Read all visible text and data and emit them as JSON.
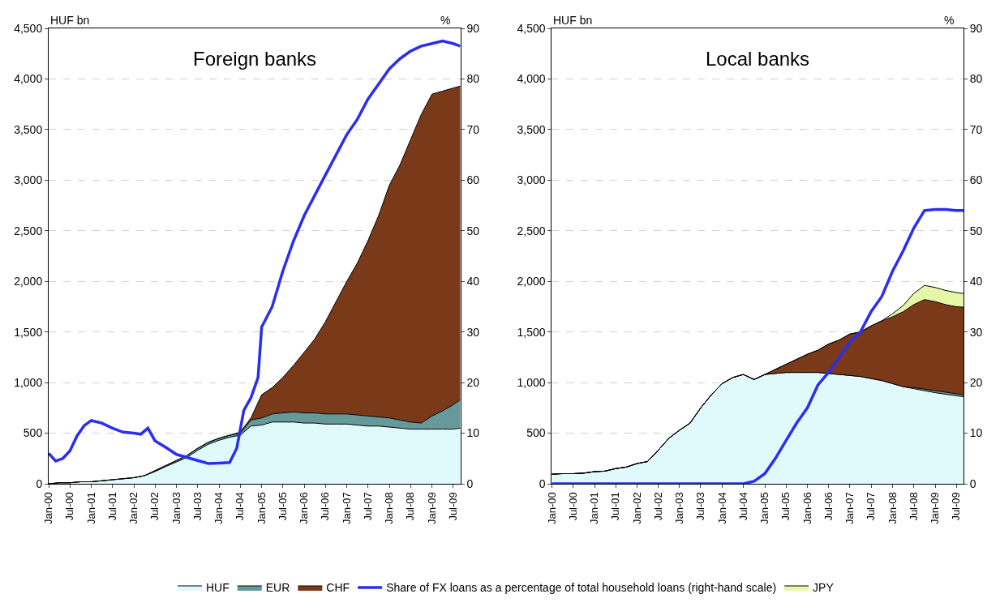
{
  "chart_data": [
    {
      "type": "area",
      "title": "Foreign banks",
      "ylabel": "HUF bn",
      "y2label": "%",
      "stacked": true,
      "grid": "y",
      "legend": "bottom",
      "x": [
        "2000-01",
        "2000-04",
        "2000-07",
        "2000-10",
        "2001-01",
        "2001-04",
        "2001-07",
        "2001-10",
        "2002-01",
        "2002-04",
        "2002-07",
        "2002-10",
        "2003-01",
        "2003-04",
        "2003-07",
        "2003-10",
        "2004-01",
        "2004-04",
        "2004-07",
        "2004-10",
        "2005-01",
        "2005-04",
        "2005-07",
        "2005-10",
        "2006-01",
        "2006-04",
        "2006-07",
        "2006-10",
        "2007-01",
        "2007-04",
        "2007-07",
        "2007-10",
        "2008-01",
        "2008-04",
        "2008-07",
        "2008-10",
        "2009-01",
        "2009-04",
        "2009-07",
        "2009-09"
      ],
      "xlim": [
        "2000-01",
        "2009-09"
      ],
      "xticks": [
        {
          "value": "2000-01",
          "label": "Jan-00"
        },
        {
          "value": "2000-07",
          "label": "Jul-00"
        },
        {
          "value": "2001-01",
          "label": "Jan-01"
        },
        {
          "value": "2001-07",
          "label": "Jul-01"
        },
        {
          "value": "2002-01",
          "label": "Jan-02"
        },
        {
          "value": "2002-07",
          "label": "Jul-02"
        },
        {
          "value": "2003-01",
          "label": "Jan-03"
        },
        {
          "value": "2003-07",
          "label": "Jul-03"
        },
        {
          "value": "2004-01",
          "label": "Jan-04"
        },
        {
          "value": "2004-07",
          "label": "Jul-04"
        },
        {
          "value": "2005-01",
          "label": "Jan-05"
        },
        {
          "value": "2005-07",
          "label": "Jul-05"
        },
        {
          "value": "2006-01",
          "label": "Jan-06"
        },
        {
          "value": "2006-07",
          "label": "Jul-06"
        },
        {
          "value": "2007-01",
          "label": "Jan-07"
        },
        {
          "value": "2007-07",
          "label": "Jul-07"
        },
        {
          "value": "2008-01",
          "label": "Jan-08"
        },
        {
          "value": "2008-07",
          "label": "Jul-08"
        },
        {
          "value": "2009-01",
          "label": "Jan-09"
        },
        {
          "value": "2009-07",
          "label": "Jul-09"
        }
      ],
      "ylim": [
        0,
        4500
      ],
      "yticks": [
        0,
        500,
        {
          "value": 1000,
          "label": "1,000"
        },
        {
          "value": 1500,
          "label": "1,500"
        },
        {
          "value": 2000,
          "label": "2,000"
        },
        {
          "value": 2500,
          "label": "2,500"
        },
        {
          "value": 3000,
          "label": "3,000"
        },
        {
          "value": 3500,
          "label": "3,500"
        },
        {
          "value": 4000,
          "label": "4,000"
        },
        {
          "value": 4500,
          "label": "4,500"
        }
      ],
      "y2lim": [
        0,
        90
      ],
      "y2ticks": [
        0,
        10,
        20,
        30,
        40,
        50,
        60,
        70,
        80,
        90
      ],
      "series": [
        {
          "name": "HUF",
          "color": "#e0fafc",
          "values": [
            0,
            10,
            10,
            20,
            20,
            30,
            40,
            50,
            60,
            80,
            120,
            170,
            215,
            260,
            330,
            390,
            430,
            460,
            480,
            570,
            580,
            610,
            610,
            610,
            600,
            600,
            590,
            590,
            590,
            580,
            570,
            570,
            560,
            550,
            540,
            540,
            540,
            540,
            540,
            550
          ]
        },
        {
          "name": "EUR",
          "color": "#669a9a",
          "values": [
            0,
            0,
            0,
            0,
            0,
            0,
            0,
            0,
            0,
            0,
            10,
            10,
            15,
            20,
            20,
            20,
            20,
            20,
            20,
            60,
            70,
            80,
            90,
            100,
            100,
            100,
            100,
            100,
            100,
            100,
            100,
            90,
            90,
            80,
            70,
            60,
            130,
            180,
            240,
            280
          ]
        },
        {
          "name": "CHF",
          "color": "#7a3a1a",
          "values": [
            0,
            0,
            0,
            0,
            0,
            0,
            0,
            0,
            0,
            0,
            0,
            0,
            0,
            0,
            0,
            0,
            0,
            0,
            10,
            20,
            230,
            260,
            350,
            460,
            600,
            730,
            910,
            1110,
            1310,
            1500,
            1730,
            1990,
            2300,
            2520,
            2790,
            3050,
            3180,
            3160,
            3130,
            3100
          ]
        },
        {
          "name": "Share of FX loans as a percentage of total household loans (right-hand scale)",
          "type": "line",
          "axis": "y2",
          "color": "#2a2ef0",
          "x": [
            "2000-01",
            "2000-03",
            "2000-05",
            "2000-07",
            "2000-09",
            "2000-11",
            "2001-01",
            "2001-04",
            "2001-07",
            "2001-10",
            "2002-01",
            "2002-03",
            "2002-05",
            "2002-07",
            "2002-10",
            "2003-01",
            "2003-04",
            "2003-07",
            "2003-10",
            "2004-01",
            "2004-04",
            "2004-06",
            "2004-08",
            "2004-10",
            "2004-12",
            "2005-01",
            "2005-04",
            "2005-07",
            "2005-10",
            "2006-01",
            "2006-04",
            "2006-07",
            "2006-10",
            "2007-01",
            "2007-04",
            "2007-07",
            "2007-10",
            "2008-01",
            "2008-04",
            "2008-07",
            "2008-10",
            "2009-01",
            "2009-04",
            "2009-07",
            "2009-09"
          ],
          "values": [
            6,
            4.5,
            5,
            6.5,
            9.5,
            11.5,
            12.5,
            12,
            11,
            10.2,
            10,
            9.8,
            11,
            8.5,
            7.2,
            5.8,
            5.2,
            4.6,
            4,
            4.1,
            4.2,
            7,
            14.5,
            17,
            21,
            31,
            35,
            42,
            48,
            53,
            57,
            61,
            65,
            69,
            72,
            76,
            79,
            82,
            84,
            85.5,
            86.5,
            87,
            87.5,
            87,
            86.5
          ]
        }
      ]
    },
    {
      "type": "area",
      "title": "Local banks",
      "ylabel": "HUF bn",
      "y2label": "%",
      "stacked": true,
      "grid": "y",
      "legend": "bottom",
      "x": [
        "2000-01",
        "2000-04",
        "2000-07",
        "2000-10",
        "2001-01",
        "2001-04",
        "2001-07",
        "2001-10",
        "2002-01",
        "2002-04",
        "2002-07",
        "2002-10",
        "2003-01",
        "2003-04",
        "2003-07",
        "2003-10",
        "2004-01",
        "2004-04",
        "2004-07",
        "2004-10",
        "2005-01",
        "2005-04",
        "2005-07",
        "2005-10",
        "2006-01",
        "2006-04",
        "2006-07",
        "2006-10",
        "2007-01",
        "2007-04",
        "2007-07",
        "2007-10",
        "2008-01",
        "2008-04",
        "2008-07",
        "2008-10",
        "2009-01",
        "2009-04",
        "2009-07",
        "2009-09"
      ],
      "xlim": [
        "2000-01",
        "2009-09"
      ],
      "xticks": [
        {
          "value": "2000-01",
          "label": "Jan-00"
        },
        {
          "value": "2000-07",
          "label": "Jul-00"
        },
        {
          "value": "2001-01",
          "label": "Jan-01"
        },
        {
          "value": "2001-07",
          "label": "Jul-01"
        },
        {
          "value": "2002-01",
          "label": "Jan-02"
        },
        {
          "value": "2002-07",
          "label": "Jul-02"
        },
        {
          "value": "2003-01",
          "label": "Jan-03"
        },
        {
          "value": "2003-07",
          "label": "Jul-03"
        },
        {
          "value": "2004-01",
          "label": "Jan-04"
        },
        {
          "value": "2004-07",
          "label": "Jul-04"
        },
        {
          "value": "2005-01",
          "label": "Jan-05"
        },
        {
          "value": "2005-07",
          "label": "Jul-05"
        },
        {
          "value": "2006-01",
          "label": "Jan-06"
        },
        {
          "value": "2006-07",
          "label": "Jul-06"
        },
        {
          "value": "2007-01",
          "label": "Jan-07"
        },
        {
          "value": "2007-07",
          "label": "Jul-07"
        },
        {
          "value": "2008-01",
          "label": "Jan-08"
        },
        {
          "value": "2008-07",
          "label": "Jul-08"
        },
        {
          "value": "2009-01",
          "label": "Jan-09"
        },
        {
          "value": "2009-07",
          "label": "Jul-09"
        }
      ],
      "ylim": [
        0,
        4500
      ],
      "yticks": [
        0,
        500,
        {
          "value": 1000,
          "label": "1,000"
        },
        {
          "value": 1500,
          "label": "1,500"
        },
        {
          "value": 2000,
          "label": "2,000"
        },
        {
          "value": 2500,
          "label": "2,500"
        },
        {
          "value": 3000,
          "label": "3,000"
        },
        {
          "value": 3500,
          "label": "3,500"
        },
        {
          "value": 4000,
          "label": "4,000"
        },
        {
          "value": 4500,
          "label": "4,500"
        }
      ],
      "y2lim": [
        0,
        90
      ],
      "y2ticks": [
        0,
        10,
        20,
        30,
        40,
        50,
        60,
        70,
        80,
        90
      ],
      "series": [
        {
          "name": "HUF",
          "color": "#e0fafc",
          "values": [
            95,
            100,
            100,
            105,
            120,
            125,
            150,
            165,
            200,
            220,
            330,
            450,
            530,
            600,
            750,
            880,
            990,
            1050,
            1080,
            1030,
            1080,
            1090,
            1100,
            1100,
            1100,
            1100,
            1090,
            1080,
            1070,
            1060,
            1040,
            1020,
            990,
            960,
            940,
            920,
            900,
            885,
            870,
            860
          ]
        },
        {
          "name": "EUR",
          "color": "#669a9a",
          "values": [
            0,
            0,
            0,
            0,
            0,
            0,
            0,
            0,
            0,
            0,
            0,
            0,
            0,
            0,
            0,
            0,
            0,
            0,
            0,
            0,
            0,
            0,
            0,
            0,
            0,
            0,
            0,
            0,
            0,
            0,
            0,
            0,
            0,
            0,
            10,
            15,
            20,
            20,
            20,
            20
          ]
        },
        {
          "name": "CHF",
          "color": "#7a3a1a",
          "values": [
            0,
            0,
            0,
            0,
            0,
            0,
            0,
            0,
            0,
            0,
            0,
            0,
            0,
            0,
            0,
            0,
            0,
            0,
            0,
            0,
            0,
            40,
            80,
            130,
            180,
            220,
            290,
            340,
            410,
            440,
            520,
            590,
            660,
            740,
            820,
            885,
            880,
            865,
            860,
            865
          ]
        },
        {
          "name": "JPY",
          "color": "#e6f7a6",
          "values": [
            0,
            0,
            0,
            0,
            0,
            0,
            0,
            0,
            0,
            0,
            0,
            0,
            0,
            0,
            0,
            0,
            0,
            0,
            0,
            0,
            0,
            0,
            0,
            0,
            0,
            0,
            0,
            0,
            0,
            0,
            0,
            0,
            30,
            60,
            110,
            140,
            140,
            140,
            140,
            135
          ]
        },
        {
          "name": "Share of FX loans as a percentage of total household loans (right-hand scale)",
          "type": "line",
          "axis": "y2",
          "color": "#2a2ef0",
          "values": [
            0,
            0,
            0,
            0,
            0,
            0,
            0,
            0,
            0,
            0,
            0,
            0,
            0,
            0,
            0,
            0,
            0,
            0,
            0,
            0.5,
            2,
            5,
            8.5,
            12,
            15,
            19.5,
            22,
            25,
            28,
            30,
            34,
            37,
            42,
            46,
            50.5,
            54,
            54.2,
            54.2,
            54,
            54
          ]
        }
      ]
    }
  ]
}
